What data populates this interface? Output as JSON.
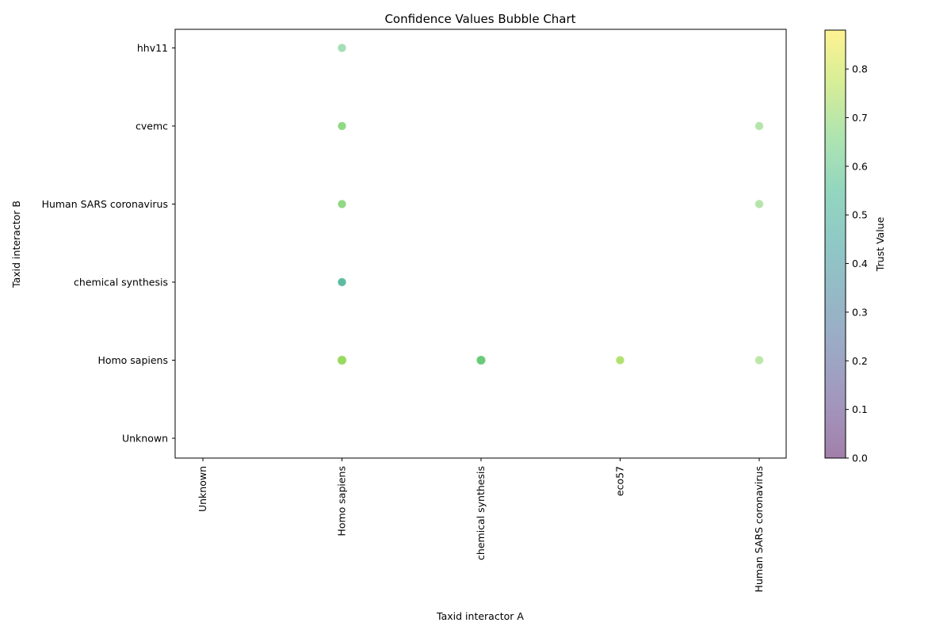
{
  "chart_data": {
    "type": "scatter",
    "title": "Confidence Values Bubble Chart",
    "xlabel": "Taxid interactor A",
    "ylabel": "Taxid interactor B",
    "x_categories": [
      "Unknown",
      "Homo sapiens",
      "chemical synthesis",
      "eco57",
      "Human SARS coronavirus"
    ],
    "y_categories": [
      "Unknown",
      "Homo sapiens",
      "chemical synthesis",
      "Human SARS coronavirus",
      "cvemc",
      "hhv11"
    ],
    "colorbar": {
      "label": "Trust Value",
      "range": [
        0,
        0.88
      ],
      "ticks": [
        "0.0",
        "0.1",
        "0.2",
        "0.3",
        "0.4",
        "0.5",
        "0.6",
        "0.7",
        "0.8"
      ],
      "colormap": "viridis",
      "alpha": 0.5
    },
    "points": [
      {
        "x": "Homo sapiens",
        "y": "hhv11",
        "trust": 0.62,
        "count": 1
      },
      {
        "x": "Homo sapiens",
        "y": "cvemc",
        "trust": 0.68,
        "count": 2
      },
      {
        "x": "Homo sapiens",
        "y": "Human SARS coronavirus",
        "trust": 0.68,
        "count": 2
      },
      {
        "x": "Homo sapiens",
        "y": "chemical synthesis",
        "trust": 0.52,
        "count": 2
      },
      {
        "x": "Homo sapiens",
        "y": "Homo sapiens",
        "trust": 0.72,
        "count": 3
      },
      {
        "x": "chemical synthesis",
        "y": "Homo sapiens",
        "trust": 0.64,
        "count": 3
      },
      {
        "x": "eco57",
        "y": "Homo sapiens",
        "trust": 0.74,
        "count": 2
      },
      {
        "x": "Human SARS coronavirus",
        "y": "cvemc",
        "trust": 0.68,
        "count": 1
      },
      {
        "x": "Human SARS coronavirus",
        "y": "Human SARS coronavirus",
        "trust": 0.68,
        "count": 1
      },
      {
        "x": "Human SARS coronavirus",
        "y": "Homo sapiens",
        "trust": 0.7,
        "count": 1
      }
    ]
  }
}
